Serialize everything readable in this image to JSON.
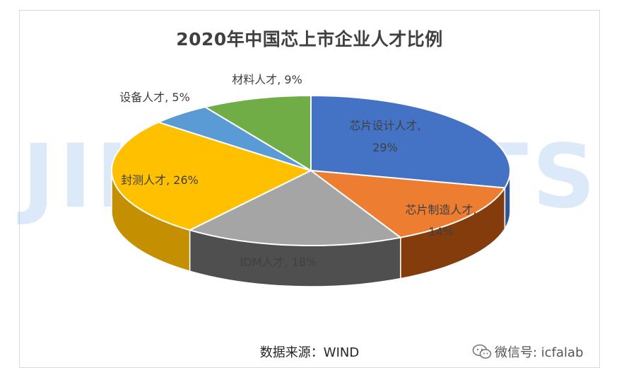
{
  "chart_data": {
    "type": "pie",
    "title": "2020年中国芯上市企业人才比例",
    "slices": [
      {
        "name": "芯片设计人才",
        "value": 29,
        "color": "#4472c4",
        "side": "#2f5597",
        "label": [
          "芯片设计人才,",
          "29%"
        ]
      },
      {
        "name": "芯片制造人才",
        "value": 14,
        "color": "#ed7d31",
        "side": "#843c0c",
        "label": [
          "芯片制造人才,",
          "14%"
        ]
      },
      {
        "name": "IDM人才",
        "value": 18,
        "color": "#a5a5a5",
        "side": "#4f4f4f",
        "label": [
          "IDM人才, 18%"
        ]
      },
      {
        "name": "封测人才",
        "value": 26,
        "color": "#ffc000",
        "side": "#c48f00",
        "label": [
          "封测人才, 26%"
        ]
      },
      {
        "name": "设备人才",
        "value": 5,
        "color": "#5b9bd5",
        "side": "#2e6ca4",
        "label": [
          "设备人才, 5%"
        ]
      },
      {
        "name": "材料人才",
        "value": 9,
        "color": "#70ad47",
        "side": "#3f6e22",
        "label": [
          "材料人才, 9%"
        ]
      }
    ]
  },
  "source_text": "数据来源：WIND",
  "watermark_text": "JIINSIGHTS",
  "wechat_text": "微信号: icfalab",
  "wechat_icon": "wechat-icon"
}
